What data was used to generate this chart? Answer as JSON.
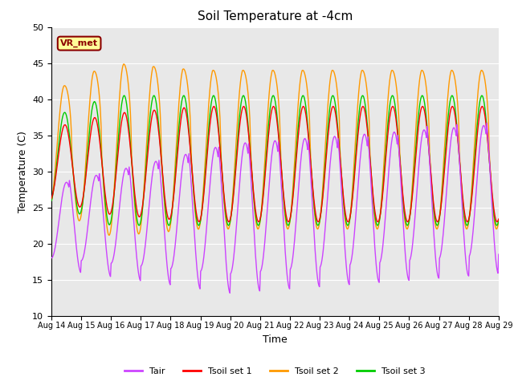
{
  "title": "Soil Temperature at -4cm",
  "xlabel": "Time",
  "ylabel": "Temperature (C)",
  "ylim": [
    10,
    50
  ],
  "background_color": "#e8e8e8",
  "fig_color": "#ffffff",
  "annotation_text": "VR_met",
  "annotation_box_color": "#ffff99",
  "annotation_border_color": "#8B0000",
  "series_colors": {
    "Tair": "#CC44FF",
    "Tsoil1": "#FF0000",
    "Tsoil2": "#FF9900",
    "Tsoil3": "#00CC00"
  },
  "legend_labels": [
    "Tair",
    "Tsoil set 1",
    "Tsoil set 2",
    "Tsoil set 3"
  ],
  "xtick_labels": [
    "Aug 14",
    "Aug 15",
    "Aug 16",
    "Aug 17",
    "Aug 18",
    "Aug 19",
    "Aug 20",
    "Aug 21",
    "Aug 22",
    "Aug 23",
    "Aug 24",
    "Aug 25",
    "Aug 26",
    "Aug 27",
    "Aug 28",
    "Aug 29"
  ],
  "days": 15,
  "pts_per_day": 48
}
